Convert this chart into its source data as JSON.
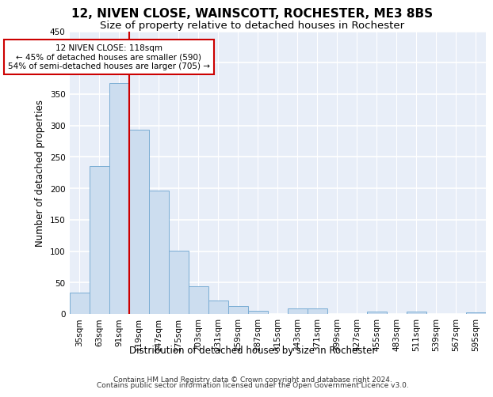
{
  "title": "12, NIVEN CLOSE, WAINSCOTT, ROCHESTER, ME3 8BS",
  "subtitle": "Size of property relative to detached houses in Rochester",
  "xlabel": "Distribution of detached houses by size in Rochester",
  "ylabel": "Number of detached properties",
  "bar_color": "#ccddef",
  "bar_edge_color": "#7aadd4",
  "background_color": "#e8eef8",
  "grid_color": "#ffffff",
  "categories": [
    "35sqm",
    "63sqm",
    "91sqm",
    "119sqm",
    "147sqm",
    "175sqm",
    "203sqm",
    "231sqm",
    "259sqm",
    "287sqm",
    "315sqm",
    "343sqm",
    "371sqm",
    "399sqm",
    "427sqm",
    "455sqm",
    "483sqm",
    "511sqm",
    "539sqm",
    "567sqm",
    "595sqm"
  ],
  "values": [
    34,
    235,
    368,
    293,
    196,
    101,
    44,
    22,
    12,
    5,
    0,
    9,
    9,
    0,
    0,
    4,
    0,
    4,
    0,
    0,
    3
  ],
  "red_line_index": 3,
  "annotation_text": "12 NIVEN CLOSE: 118sqm\n← 45% of detached houses are smaller (590)\n54% of semi-detached houses are larger (705) →",
  "annotation_box_color": "#ffffff",
  "annotation_border_color": "#cc0000",
  "property_line_color": "#cc0000",
  "ylim": [
    0,
    450
  ],
  "yticks": [
    0,
    50,
    100,
    150,
    200,
    250,
    300,
    350,
    400,
    450
  ],
  "footer_line1": "Contains HM Land Registry data © Crown copyright and database right 2024.",
  "footer_line2": "Contains public sector information licensed under the Open Government Licence v3.0.",
  "title_fontsize": 11,
  "subtitle_fontsize": 9.5,
  "label_fontsize": 8.5,
  "tick_fontsize": 7.5,
  "footer_fontsize": 6.5,
  "annotation_fontsize": 7.5
}
